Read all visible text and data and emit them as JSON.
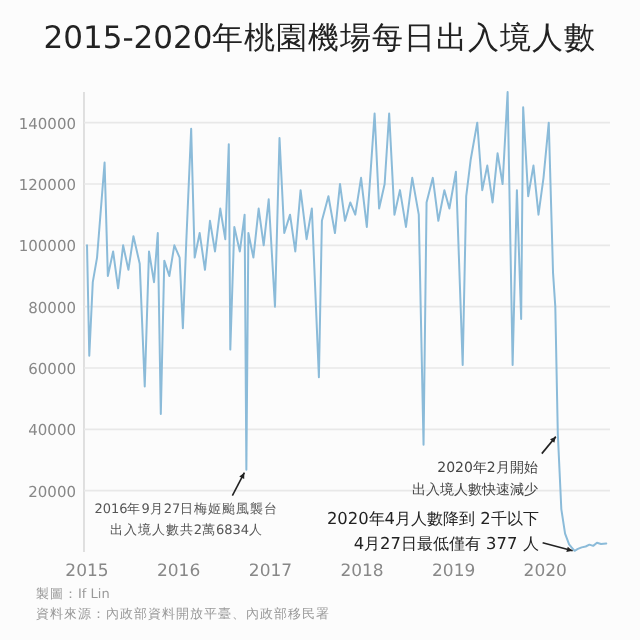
{
  "chart_data": {
    "type": "line",
    "title": "2015-2020年桃園機場每日出入境人數",
    "x": [
      "2015-01-01",
      "2015-01-10",
      "2015-01-24",
      "2015-02-10",
      "2015-03-12",
      "2015-03-25",
      "2015-04-15",
      "2015-05-05",
      "2015-05-25",
      "2015-06-15",
      "2015-07-05",
      "2015-07-30",
      "2015-08-19",
      "2015-09-05",
      "2015-09-25",
      "2015-10-10",
      "2015-10-22",
      "2015-11-05",
      "2015-11-25",
      "2015-12-15",
      "2016-01-05",
      "2016-01-18",
      "2016-02-01",
      "2016-02-20",
      "2016-03-05",
      "2016-03-25",
      "2016-04-15",
      "2016-05-05",
      "2016-05-25",
      "2016-06-15",
      "2016-07-05",
      "2016-07-19",
      "2016-07-25",
      "2016-08-10",
      "2016-09-01",
      "2016-09-20",
      "2016-09-27",
      "2016-10-05",
      "2016-10-25",
      "2016-11-15",
      "2016-12-05",
      "2016-12-25",
      "2017-01-19",
      "2017-02-06",
      "2017-02-25",
      "2017-03-20",
      "2017-04-10",
      "2017-05-01",
      "2017-05-25",
      "2017-06-15",
      "2017-07-13",
      "2017-07-25",
      "2017-08-20",
      "2017-09-15",
      "2017-10-05",
      "2017-10-25",
      "2017-11-15",
      "2017-12-05",
      "2017-12-28",
      "2018-01-20",
      "2018-02-20",
      "2018-03-10",
      "2018-04-01",
      "2018-04-19",
      "2018-05-10",
      "2018-06-01",
      "2018-06-25",
      "2018-07-20",
      "2018-08-15",
      "2018-09-03",
      "2018-09-15",
      "2018-10-10",
      "2018-11-01",
      "2018-11-25",
      "2018-12-15",
      "2019-01-10",
      "2019-02-06",
      "2019-02-20",
      "2019-03-10",
      "2019-04-05",
      "2019-04-25",
      "2019-05-15",
      "2019-06-05",
      "2019-06-25",
      "2019-07-15",
      "2019-08-04",
      "2019-08-24",
      "2019-09-10",
      "2019-09-27",
      "2019-10-05",
      "2019-10-25",
      "2019-11-15",
      "2019-12-05",
      "2019-12-25",
      "2020-01-15",
      "2020-02-01",
      "2020-02-10",
      "2020-02-20",
      "2020-03-05",
      "2020-03-20",
      "2020-04-05",
      "2020-04-15",
      "2020-04-27",
      "2020-05-10",
      "2020-05-25",
      "2020-06-10",
      "2020-06-25",
      "2020-07-10",
      "2020-07-25",
      "2020-08-10",
      "2020-08-31"
    ],
    "values": [
      100000,
      64000,
      88000,
      96000,
      127000,
      90000,
      98000,
      86000,
      100000,
      92000,
      103000,
      94000,
      54000,
      98000,
      88000,
      104000,
      45000,
      95000,
      90000,
      100000,
      96000,
      73000,
      102000,
      138000,
      96000,
      104000,
      92000,
      108000,
      98000,
      112000,
      102000,
      133000,
      66000,
      106000,
      98000,
      110000,
      26834,
      104000,
      96000,
      112000,
      100000,
      115000,
      80000,
      135000,
      104000,
      110000,
      98000,
      118000,
      102000,
      112000,
      57000,
      108000,
      116000,
      104000,
      120000,
      108000,
      114000,
      110000,
      122000,
      106000,
      143000,
      112000,
      120000,
      143000,
      110000,
      118000,
      106000,
      122000,
      110000,
      35000,
      114000,
      122000,
      108000,
      118000,
      112000,
      124000,
      61000,
      116000,
      128000,
      140000,
      118000,
      126000,
      114000,
      130000,
      120000,
      150000,
      61000,
      118000,
      76000,
      145000,
      116000,
      126000,
      110000,
      122000,
      140000,
      91000,
      80000,
      38600,
      14000,
      6000,
      2500,
      1500,
      377,
      1000,
      1500,
      1800,
      2400,
      2000,
      3000,
      2600,
      2800
    ],
    "color": "#8bbbd9",
    "xlim": [
      "2014-12-20",
      "2020-09-15"
    ],
    "xticks": [
      "2015",
      "2016",
      "2017",
      "2018",
      "2019",
      "2020"
    ],
    "ylim": [
      0,
      150000
    ],
    "yticks": [
      20000,
      40000,
      60000,
      80000,
      100000,
      120000,
      140000
    ],
    "grid": "y",
    "annotations": [
      {
        "text": "2016年9月27日梅姬颱風襲台出入境人數共2萬6834人",
        "x": "2016-09-27",
        "y": 26834
      },
      {
        "text": "2020年2月開始出入境人數快速減少",
        "x": "2020-02-20",
        "y": 38600
      },
      {
        "text": "2020年4月人數降到 2千以下4月27日最低僅有 377 人",
        "x": "2020-04-27",
        "y": 377
      },
      "製圖：If Lin",
      "資料來源：內政部資料開放平臺、內政部移民署"
    ]
  }
}
